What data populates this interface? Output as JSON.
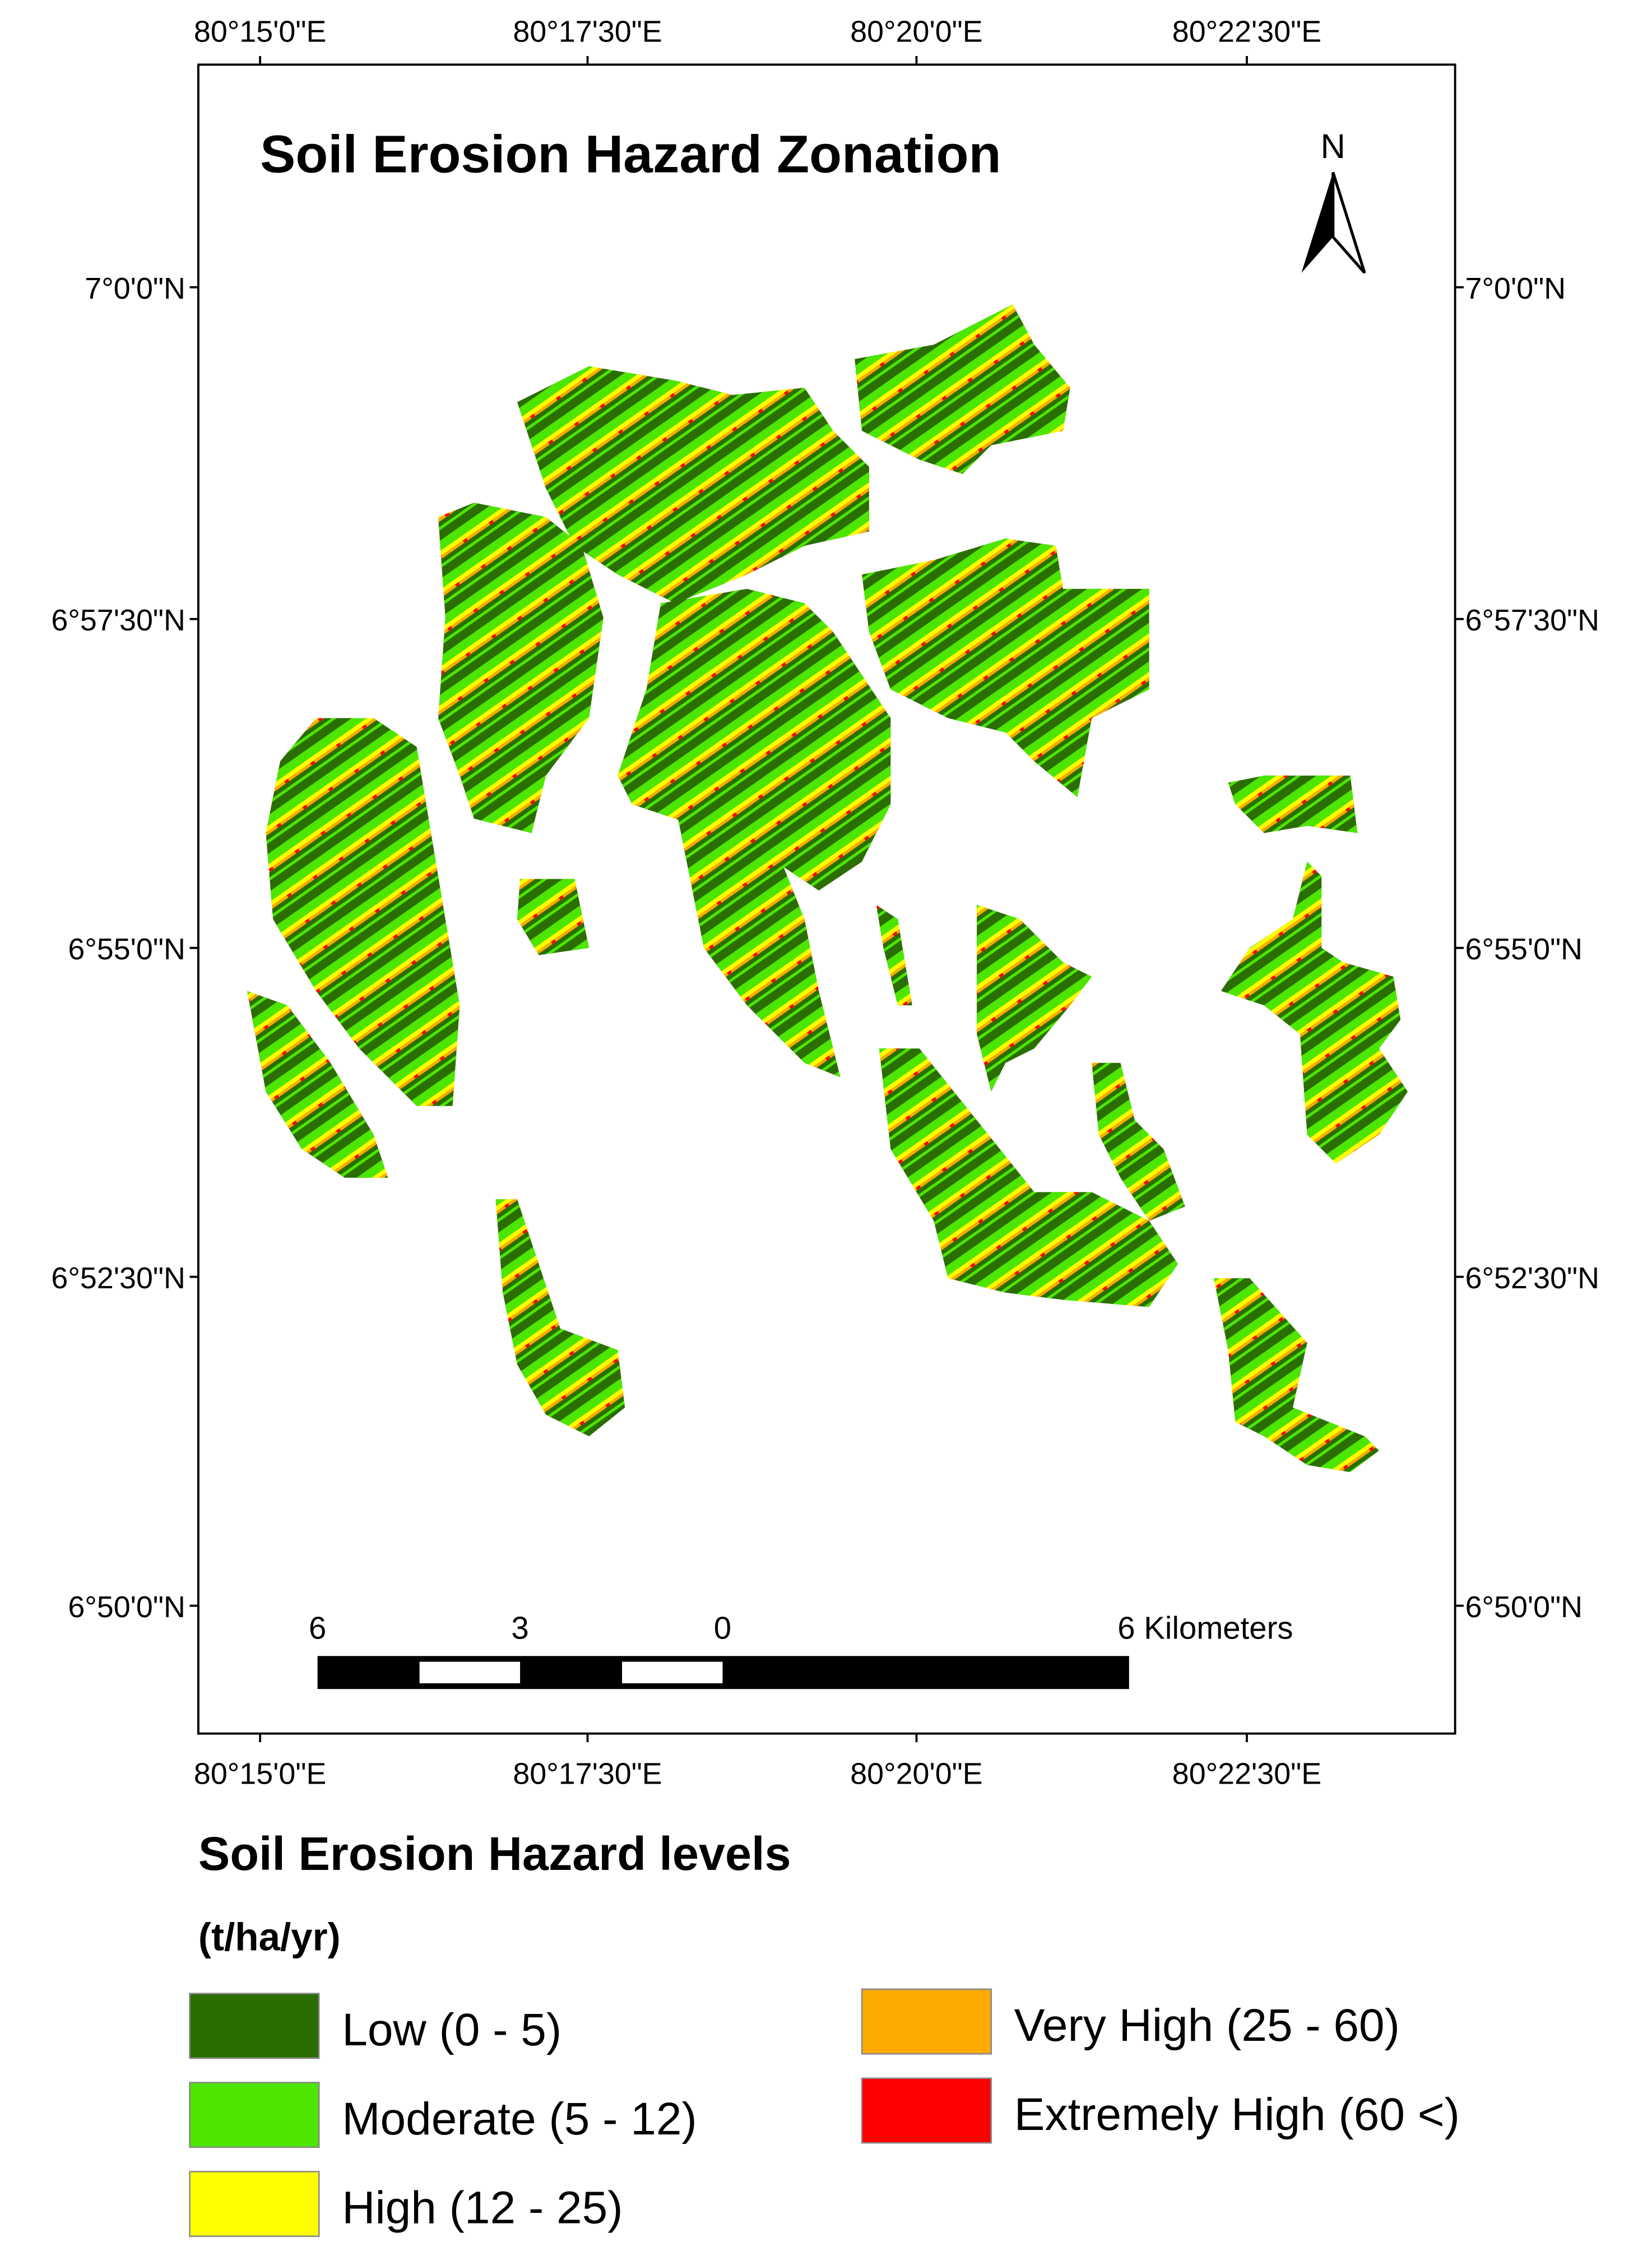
{
  "title": "Soil Erosion Hazard Zonation",
  "north_arrow": "N",
  "grid_labels": {
    "top": [
      "80°15'0\"E",
      "80°17'30\"E",
      "80°20'0\"E",
      "80°22'30\"E"
    ],
    "bottom": [
      "80°15'0\"E",
      "80°17'30\"E",
      "80°20'0\"E",
      "80°22'30\"E"
    ],
    "left": [
      "7°0'0\"N",
      "6°57'30\"N",
      "6°55'0\"N",
      "6°52'30\"N",
      "6°50'0\"N"
    ],
    "right": [
      "7°0'0\"N",
      "6°57'30\"N",
      "6°55'0\"N",
      "6°52'30\"N",
      "6°50'0\"N"
    ]
  },
  "scale_bar": {
    "labels": [
      "6",
      "3",
      "0",
      "6 Kilometers"
    ]
  },
  "legend": {
    "title": "Soil Erosion Hazard levels",
    "unit": "(t/ha/yr)",
    "items": [
      {
        "label": "Low (0 - 5)",
        "color": "#2b6e00"
      },
      {
        "label": "Moderate (5 - 12)",
        "color": "#4ce600"
      },
      {
        "label": "High (12 - 25)",
        "color": "#ffff00"
      },
      {
        "label": "Very High (25 - 60)",
        "color": "#ffaa00"
      },
      {
        "label": "Extremely High (60 <)",
        "color": "#ff0000"
      }
    ]
  }
}
